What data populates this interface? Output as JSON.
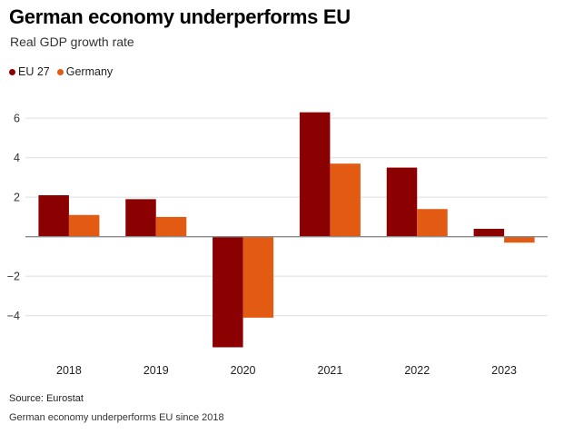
{
  "header": {
    "title": "German economy underperforms EU",
    "subtitle": "Real GDP growth rate"
  },
  "legend": [
    {
      "label": "EU 27",
      "color": "#8b0000"
    },
    {
      "label": "Germany",
      "color": "#e35a12"
    }
  ],
  "footer": {
    "source": "Source: Eurostat",
    "caption": "German economy underperforms EU since 2018"
  },
  "chart_data": {
    "type": "bar",
    "title": "German economy underperforms EU",
    "subtitle": "Real GDP growth rate",
    "xlabel": "",
    "ylabel": "",
    "categories": [
      "2018",
      "2019",
      "2020",
      "2021",
      "2022",
      "2023"
    ],
    "series": [
      {
        "name": "EU 27",
        "color": "#8b0000",
        "values": [
          2.1,
          1.9,
          -5.6,
          6.3,
          3.5,
          0.4
        ]
      },
      {
        "name": "Germany",
        "color": "#e35a12",
        "values": [
          1.1,
          1.0,
          -4.1,
          3.7,
          1.4,
          -0.3
        ]
      }
    ],
    "yticks": [
      -4,
      -2,
      2,
      6,
      4
    ],
    "ytick_labels": [
      "6",
      "4",
      "2",
      "−2",
      "−4"
    ],
    "ytick_values": [
      6,
      4,
      2,
      -2,
      -4
    ],
    "ylim": [
      -6,
      6.5
    ],
    "grid": true,
    "legend_position": "top-left"
  }
}
